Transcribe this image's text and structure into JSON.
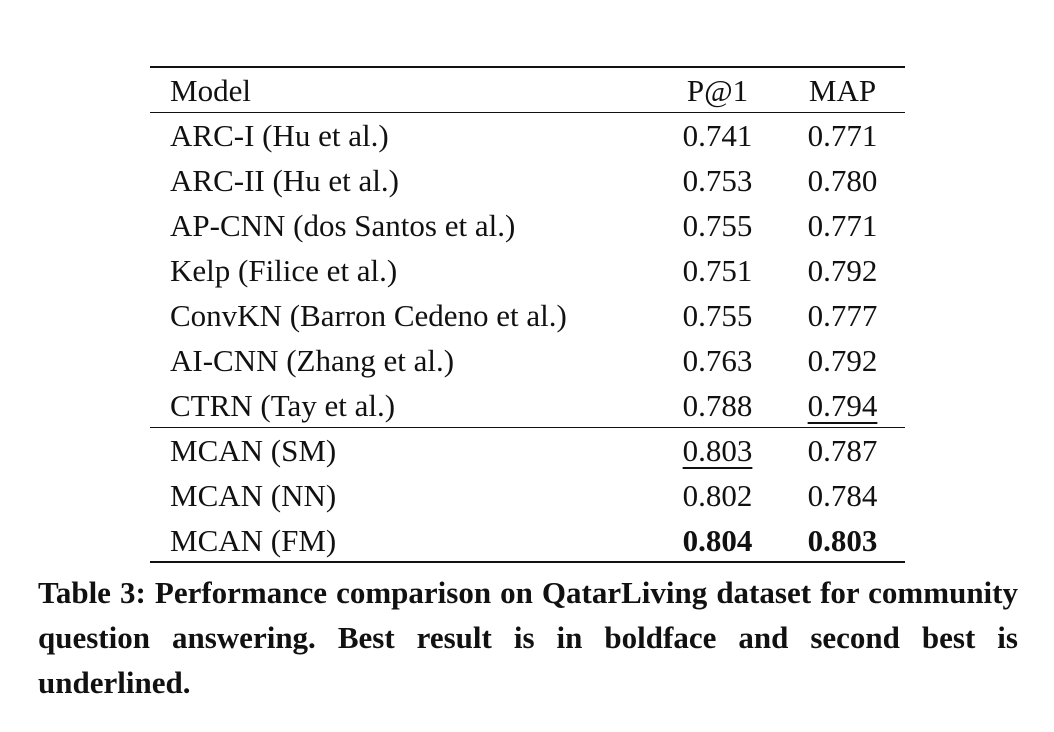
{
  "table": {
    "header": [
      "Model",
      "P@1",
      "MAP"
    ],
    "rows": [
      [
        "ARC-I (Hu et al.)",
        "0.741",
        "0.771"
      ],
      [
        "ARC-II (Hu et al.)",
        "0.753",
        "0.780"
      ],
      [
        "AP-CNN (dos Santos et al.)",
        "0.755",
        "0.771"
      ],
      [
        "Kelp (Filice et al.)",
        "0.751",
        "0.792"
      ],
      [
        "ConvKN (Barron Cedeno et al.)",
        "0.755",
        "0.777"
      ],
      [
        "AI-CNN (Zhang et al.)",
        "0.763",
        "0.792"
      ],
      [
        "CTRN (Tay et al.)",
        "0.788",
        "0.794"
      ],
      [
        "MCAN (SM)",
        "0.803",
        "0.787"
      ],
      [
        "MCAN (NN)",
        "0.802",
        "0.784"
      ],
      [
        "MCAN (FM)",
        "0.804",
        "0.803"
      ]
    ],
    "caption": "Table 3: Performance comparison on QatarLiving dataset for community question answering. Best result is in boldface and second best is underlined."
  }
}
